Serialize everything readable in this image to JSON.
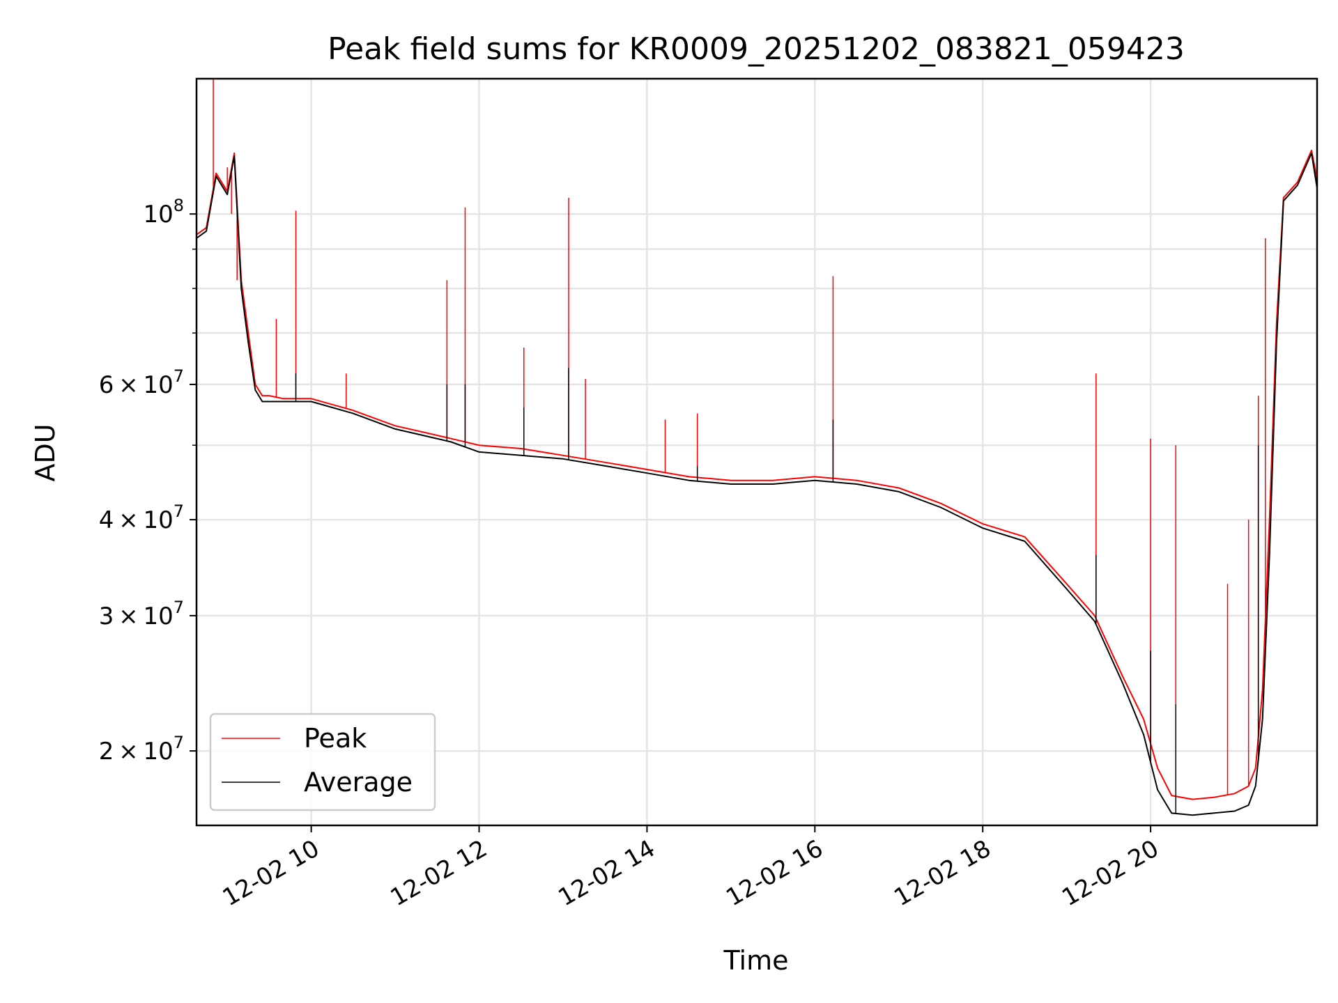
{
  "chart_data": {
    "type": "line",
    "title": "Peak field sums for KR0009_20251202_083821_059423",
    "xlabel": "Time",
    "ylabel": "ADU",
    "yscale": "log",
    "xlim": [
      "2025-12-02 08:38",
      "2025-12-02 21:59"
    ],
    "ylim": [
      16000000,
      150000000
    ],
    "grid": true,
    "legend": {
      "placement": "lower-left"
    },
    "x_ticks": [
      {
        "t": "2025-12-02 10:00",
        "label": "12-02 10"
      },
      {
        "t": "2025-12-02 12:00",
        "label": "12-02 12"
      },
      {
        "t": "2025-12-02 14:00",
        "label": "12-02 14"
      },
      {
        "t": "2025-12-02 16:00",
        "label": "12-02 16"
      },
      {
        "t": "2025-12-02 18:00",
        "label": "12-02 18"
      },
      {
        "t": "2025-12-02 20:00",
        "label": "12-02 20"
      }
    ],
    "y_ticks": [
      {
        "v": 20000000,
        "mant": "2",
        "exp": "7"
      },
      {
        "v": 30000000,
        "mant": "3",
        "exp": "7"
      },
      {
        "v": 40000000,
        "mant": "4",
        "exp": "7"
      },
      {
        "v": 60000000,
        "mant": "6",
        "exp": "7"
      },
      {
        "v": 100000000,
        "mant": "",
        "exp": "8"
      }
    ],
    "y_minor_ticks": [
      50000000,
      70000000,
      80000000,
      90000000
    ],
    "series": [
      {
        "name": "Peak",
        "color": "#ff0000",
        "x": [
          "2025-12-02 08:38",
          "2025-12-02 08:45",
          "2025-12-02 08:52",
          "2025-12-02 09:00",
          "2025-12-02 09:05",
          "2025-12-02 09:10",
          "2025-12-02 09:15",
          "2025-12-02 09:20",
          "2025-12-02 09:25",
          "2025-12-02 09:30",
          "2025-12-02 09:40",
          "2025-12-02 10:00",
          "2025-12-02 10:30",
          "2025-12-02 11:00",
          "2025-12-02 11:20",
          "2025-12-02 11:40",
          "2025-12-02 12:00",
          "2025-12-02 12:30",
          "2025-12-02 13:00",
          "2025-12-02 13:30",
          "2025-12-02 14:00",
          "2025-12-02 14:30",
          "2025-12-02 15:00",
          "2025-12-02 15:30",
          "2025-12-02 16:00",
          "2025-12-02 16:30",
          "2025-12-02 17:00",
          "2025-12-02 17:30",
          "2025-12-02 18:00",
          "2025-12-02 18:30",
          "2025-12-02 19:00",
          "2025-12-02 19:20",
          "2025-12-02 19:40",
          "2025-12-02 19:55",
          "2025-12-02 20:05",
          "2025-12-02 20:15",
          "2025-12-02 20:30",
          "2025-12-02 20:45",
          "2025-12-02 21:00",
          "2025-12-02 21:10",
          "2025-12-02 21:15",
          "2025-12-02 21:20",
          "2025-12-02 21:25",
          "2025-12-02 21:30",
          "2025-12-02 21:35",
          "2025-12-02 21:45",
          "2025-12-02 21:55",
          "2025-12-02 21:59"
        ],
        "y": [
          94000000,
          96000000,
          113000000,
          107000000,
          120000000,
          82000000,
          70000000,
          60000000,
          58000000,
          58000000,
          57500000,
          57500000,
          55500000,
          53000000,
          52000000,
          51000000,
          50000000,
          49500000,
          48500000,
          47500000,
          46500000,
          45500000,
          45000000,
          45000000,
          45500000,
          45000000,
          44000000,
          42000000,
          39500000,
          38000000,
          33000000,
          30000000,
          25000000,
          22000000,
          19000000,
          17500000,
          17300000,
          17400000,
          17600000,
          18000000,
          19000000,
          24000000,
          40000000,
          72000000,
          105000000,
          110000000,
          121000000,
          111000000
        ],
        "spikes": [
          {
            "t": "2025-12-02 08:50",
            "y": 150000000
          },
          {
            "t": "2025-12-02 09:00",
            "y": 115000000
          },
          {
            "t": "2025-12-02 09:03",
            "y": 100000000
          },
          {
            "t": "2025-12-02 09:07",
            "y": 82000000
          },
          {
            "t": "2025-12-02 09:35",
            "y": 73000000
          },
          {
            "t": "2025-12-02 09:49",
            "y": 101000000
          },
          {
            "t": "2025-12-02 10:25",
            "y": 62000000
          },
          {
            "t": "2025-12-02 11:37",
            "y": 82000000
          },
          {
            "t": "2025-12-02 11:50",
            "y": 102000000
          },
          {
            "t": "2025-12-02 12:32",
            "y": 67000000
          },
          {
            "t": "2025-12-02 13:04",
            "y": 105000000
          },
          {
            "t": "2025-12-02 13:16",
            "y": 61000000
          },
          {
            "t": "2025-12-02 14:13",
            "y": 54000000
          },
          {
            "t": "2025-12-02 14:36",
            "y": 55000000
          },
          {
            "t": "2025-12-02 16:13",
            "y": 83000000
          },
          {
            "t": "2025-12-02 19:21",
            "y": 62000000
          },
          {
            "t": "2025-12-02 20:00",
            "y": 51000000
          },
          {
            "t": "2025-12-02 20:18",
            "y": 50000000
          },
          {
            "t": "2025-12-02 20:55",
            "y": 33000000
          },
          {
            "t": "2025-12-02 21:10",
            "y": 40000000
          },
          {
            "t": "2025-12-02 21:17",
            "y": 58000000
          },
          {
            "t": "2025-12-02 21:22",
            "y": 93000000
          }
        ]
      },
      {
        "name": "Average",
        "color": "#000000",
        "x": [
          "2025-12-02 08:38",
          "2025-12-02 08:45",
          "2025-12-02 08:52",
          "2025-12-02 09:00",
          "2025-12-02 09:05",
          "2025-12-02 09:10",
          "2025-12-02 09:15",
          "2025-12-02 09:20",
          "2025-12-02 09:25",
          "2025-12-02 09:30",
          "2025-12-02 09:40",
          "2025-12-02 10:00",
          "2025-12-02 10:30",
          "2025-12-02 11:00",
          "2025-12-02 11:20",
          "2025-12-02 11:40",
          "2025-12-02 12:00",
          "2025-12-02 12:30",
          "2025-12-02 13:00",
          "2025-12-02 13:30",
          "2025-12-02 14:00",
          "2025-12-02 14:30",
          "2025-12-02 15:00",
          "2025-12-02 15:30",
          "2025-12-02 16:00",
          "2025-12-02 16:30",
          "2025-12-02 17:00",
          "2025-12-02 17:30",
          "2025-12-02 18:00",
          "2025-12-02 18:30",
          "2025-12-02 19:00",
          "2025-12-02 19:20",
          "2025-12-02 19:40",
          "2025-12-02 19:55",
          "2025-12-02 20:05",
          "2025-12-02 20:15",
          "2025-12-02 20:30",
          "2025-12-02 20:45",
          "2025-12-02 21:00",
          "2025-12-02 21:10",
          "2025-12-02 21:15",
          "2025-12-02 21:20",
          "2025-12-02 21:25",
          "2025-12-02 21:30",
          "2025-12-02 21:35",
          "2025-12-02 21:45",
          "2025-12-02 21:55",
          "2025-12-02 21:59"
        ],
        "y": [
          93000000,
          95000000,
          112000000,
          106000000,
          119000000,
          80000000,
          68000000,
          59000000,
          57000000,
          57000000,
          57000000,
          57000000,
          55000000,
          52500000,
          51500000,
          50500000,
          49000000,
          48500000,
          48000000,
          47000000,
          46000000,
          45000000,
          44500000,
          44500000,
          45000000,
          44500000,
          43500000,
          41500000,
          39000000,
          37500000,
          32500000,
          29500000,
          24500000,
          21000000,
          17800000,
          16600000,
          16500000,
          16600000,
          16700000,
          17000000,
          18000000,
          22000000,
          36000000,
          68000000,
          104000000,
          109000000,
          120000000,
          108000000
        ],
        "spikes": [
          {
            "t": "2025-12-02 09:49",
            "y": 62000000
          },
          {
            "t": "2025-12-02 11:37",
            "y": 60000000
          },
          {
            "t": "2025-12-02 11:50",
            "y": 60000000
          },
          {
            "t": "2025-12-02 12:32",
            "y": 56000000
          },
          {
            "t": "2025-12-02 13:04",
            "y": 63000000
          },
          {
            "t": "2025-12-02 14:36",
            "y": 47000000
          },
          {
            "t": "2025-12-02 16:13",
            "y": 54000000
          },
          {
            "t": "2025-12-02 19:21",
            "y": 36000000
          },
          {
            "t": "2025-12-02 20:00",
            "y": 27000000
          },
          {
            "t": "2025-12-02 20:18",
            "y": 23000000
          },
          {
            "t": "2025-12-02 21:17",
            "y": 50000000
          }
        ]
      }
    ]
  }
}
